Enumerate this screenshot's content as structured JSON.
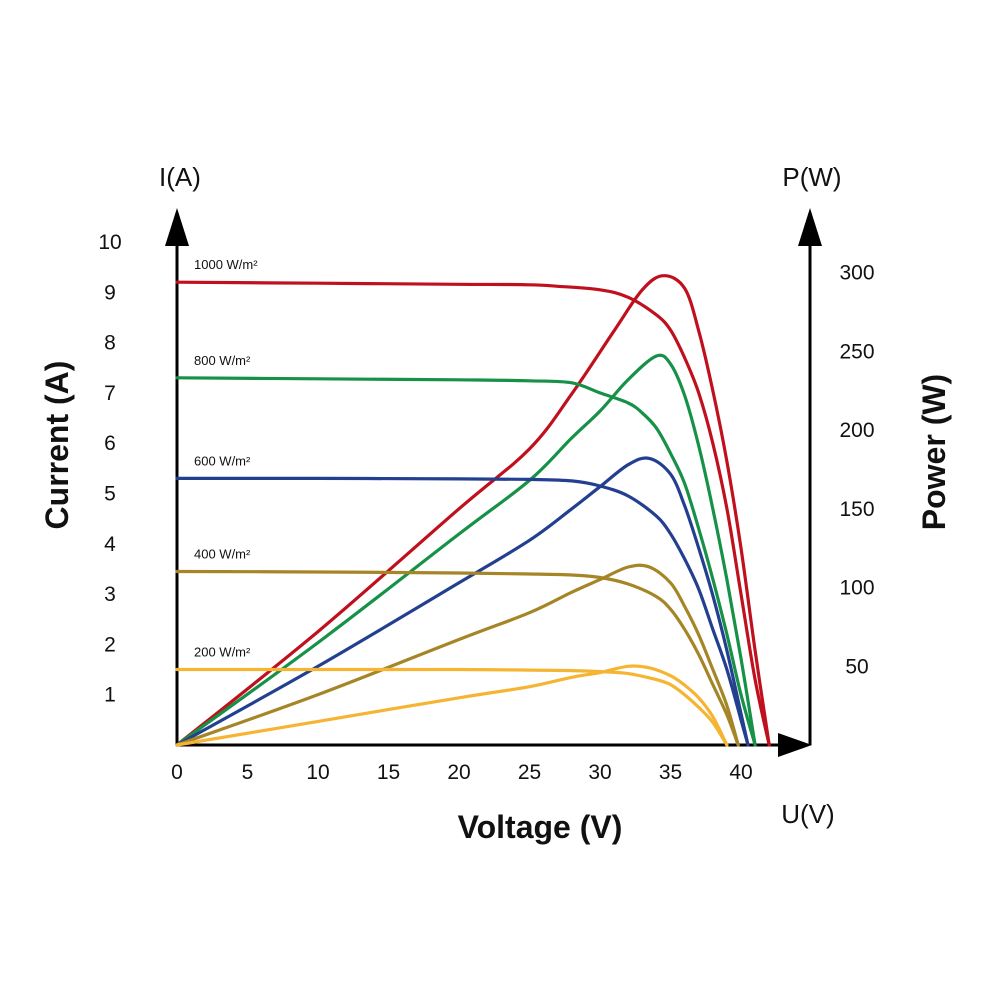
{
  "chart_data": {
    "type": "line",
    "left_axis_unit": "I(A)",
    "right_axis_unit": "P(W)",
    "x_axis_unit": "U(V)",
    "xlabel": "Voltage (V)",
    "ylabel_left": "Current (A)",
    "ylabel_right": "Power (W)",
    "x_ticks": [
      "0",
      "5",
      "10",
      "15",
      "20",
      "25",
      "30",
      "35",
      "40"
    ],
    "y_left_ticks": [
      "1",
      "2",
      "3",
      "4",
      "5",
      "6",
      "7",
      "8",
      "9",
      "10"
    ],
    "y_right_ticks": [
      "50",
      "100",
      "150",
      "200",
      "250",
      "300"
    ],
    "xlim": [
      0,
      45
    ],
    "ylim_left": [
      0,
      10
    ],
    "ylim_right": [
      0,
      300
    ],
    "grid": false,
    "series": [
      {
        "name": "1000 W/m²",
        "color": "#c0101e",
        "current": {
          "x": [
            0,
            10,
            20,
            25,
            27,
            30,
            32,
            34,
            35,
            36,
            37,
            38,
            39,
            40,
            41,
            42
          ],
          "y": [
            9.2,
            9.18,
            9.16,
            9.15,
            9.12,
            9.05,
            8.9,
            8.55,
            8.25,
            7.7,
            7.0,
            6.0,
            4.7,
            3.0,
            1.3,
            0
          ]
        },
        "power": {
          "x": [
            0,
            10,
            20,
            25,
            28,
            31,
            33,
            34.5,
            36,
            37,
            38,
            39,
            40,
            41,
            42
          ],
          "y": [
            0,
            72,
            150,
            188,
            223,
            263,
            289,
            298,
            290,
            263,
            225,
            180,
            125,
            60,
            0
          ]
        }
      },
      {
        "name": "800 W/m²",
        "color": "#179147",
        "current": {
          "x": [
            0,
            10,
            20,
            25,
            28,
            30,
            32,
            33,
            34,
            35,
            36,
            37,
            38,
            39,
            40,
            41
          ],
          "y": [
            7.3,
            7.28,
            7.26,
            7.24,
            7.2,
            7.0,
            6.8,
            6.6,
            6.3,
            5.8,
            5.2,
            4.3,
            3.3,
            2.2,
            1.0,
            0
          ]
        },
        "power": {
          "x": [
            0,
            10,
            20,
            25,
            28,
            30,
            32,
            34,
            35,
            36,
            37,
            38,
            39,
            40,
            41
          ],
          "y": [
            0,
            65,
            134,
            168,
            195,
            212,
            232,
            247,
            242,
            222,
            190,
            150,
            105,
            55,
            0
          ]
        }
      },
      {
        "name": "600 W/m²",
        "color": "#233f8f",
        "current": {
          "x": [
            0,
            10,
            20,
            25,
            28,
            30,
            32,
            34,
            35,
            36,
            37,
            38,
            39,
            40,
            40.5
          ],
          "y": [
            5.3,
            5.3,
            5.29,
            5.28,
            5.25,
            5.15,
            4.95,
            4.55,
            4.2,
            3.7,
            3.1,
            2.3,
            1.5,
            0.5,
            0
          ]
        },
        "power": {
          "x": [
            0,
            10,
            20,
            25,
            28,
            30,
            32,
            33.5,
            35,
            36,
            37,
            38,
            39,
            40,
            40.5
          ],
          "y": [
            0,
            50,
            103,
            130,
            150,
            164,
            178,
            182,
            172,
            152,
            125,
            95,
            60,
            20,
            0
          ]
        }
      },
      {
        "name": "400 W/m²",
        "color": "#a68527",
        "current": {
          "x": [
            0,
            10,
            20,
            25,
            28,
            30,
            32,
            34,
            35,
            36,
            37,
            38,
            39,
            39.8
          ],
          "y": [
            3.45,
            3.44,
            3.42,
            3.4,
            3.38,
            3.33,
            3.2,
            2.95,
            2.7,
            2.3,
            1.8,
            1.2,
            0.6,
            0
          ]
        },
        "power": {
          "x": [
            0,
            10,
            20,
            25,
            28,
            30,
            32,
            33.5,
            35,
            36,
            37,
            38,
            39,
            39.8
          ],
          "y": [
            0,
            32,
            67,
            84,
            97,
            105,
            113,
            113,
            103,
            88,
            70,
            48,
            25,
            0
          ]
        }
      },
      {
        "name": "200 W/m²",
        "color": "#f5b533",
        "current": {
          "x": [
            0,
            10,
            20,
            25,
            28,
            30,
            32,
            34,
            35,
            36,
            37,
            38,
            39
          ],
          "y": [
            1.5,
            1.5,
            1.5,
            1.49,
            1.48,
            1.46,
            1.42,
            1.3,
            1.2,
            1.0,
            0.75,
            0.45,
            0
          ]
        },
        "power": {
          "x": [
            0,
            10,
            20,
            25,
            28,
            30,
            32,
            33.5,
            35,
            36,
            37,
            38,
            39
          ],
          "y": [
            0,
            15,
            30,
            37,
            43,
            46,
            50,
            49,
            44,
            38,
            30,
            18,
            0
          ]
        }
      }
    ]
  }
}
